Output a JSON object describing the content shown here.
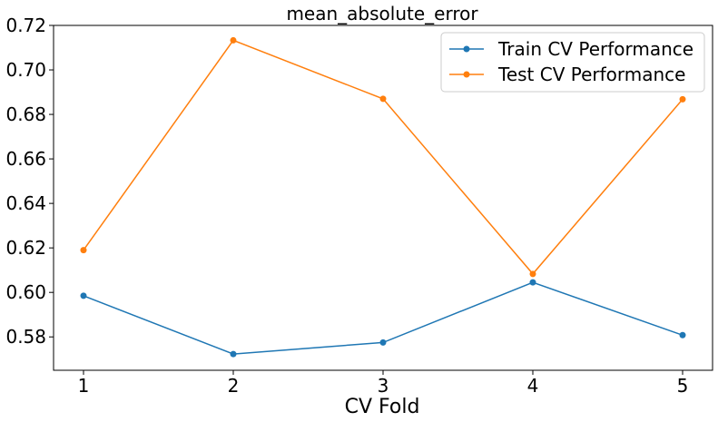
{
  "chart_data": {
    "type": "line",
    "title": "mean_absolute_error",
    "xlabel": "CV Fold",
    "ylabel": "",
    "x": [
      1,
      2,
      3,
      4,
      5
    ],
    "xticks": [
      "1",
      "2",
      "3",
      "4",
      "5"
    ],
    "yticks": [
      "0.58",
      "0.60",
      "0.62",
      "0.64",
      "0.66",
      "0.68",
      "0.70",
      "0.72"
    ],
    "xlim": [
      0.8,
      5.2
    ],
    "ylim": [
      0.565,
      0.72
    ],
    "grid": false,
    "legend_position": "top-right",
    "series": [
      {
        "name": "Train CV Performance",
        "color": "#1f77b4",
        "marker": "circle",
        "values": [
          0.5985,
          0.5723,
          0.5775,
          0.6045,
          0.5808
        ]
      },
      {
        "name": "Test CV Performance",
        "color": "#ff7f0e",
        "marker": "circle",
        "values": [
          0.619,
          0.7133,
          0.687,
          0.6083,
          0.6868
        ]
      }
    ]
  }
}
